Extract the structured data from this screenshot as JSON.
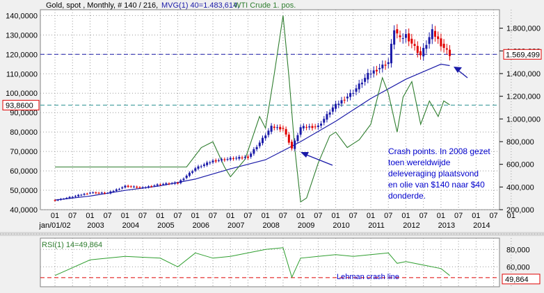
{
  "header": {
    "instrument": "Gold, spot , Monthly, # 140 / 216,",
    "mvg": "MVG(1) 40=1.483,614,",
    "crude": "WTI Crude 1. pos."
  },
  "colors": {
    "gold_up": "#1a1aa8",
    "gold_down": "#e00000",
    "ma": "#1a1aa8",
    "crude": "#2e7d2e",
    "rsi": "#2e9e2e",
    "gridline": "#9a9a9a",
    "hline_price": "#1a1aa8",
    "hline_crude": "#2a9090",
    "hline_rsi": "#e00000",
    "annotation": "#0000cc"
  },
  "annotation": {
    "lines": [
      "Crash points. In 2008 gezet",
      "toen wereldwijde",
      "deleveraging plaatsvond",
      "en olie van $140 naar $40",
      "donderde."
    ]
  },
  "rsi_panel": {
    "label": "RSI(1) 14=49,864",
    "crash_line_label": "Lehman crash line",
    "value_box": "49,864"
  },
  "chart_data": [
    {
      "type": "candlestick",
      "title": "Gold, spot , Monthly, # 140 / 216, MVG(1) 40=1.483,614, WTI Crude 1. pos.",
      "x_ticks_month": [
        "01",
        "07",
        "01",
        "07",
        "01",
        "07",
        "01",
        "07",
        "01",
        "07",
        "01",
        "07",
        "01",
        "07",
        "01",
        "07",
        "01",
        "07",
        "01",
        "07",
        "01",
        "07",
        "01",
        "07",
        "01",
        "07",
        "01"
      ],
      "x_ticks_year": [
        "jan/01/02",
        "2003",
        "2004",
        "2005",
        "2006",
        "2007",
        "2008",
        "2009",
        "2010",
        "2011",
        "2012",
        "2013",
        "2014"
      ],
      "xlim": [
        2001.583,
        2014.667
      ],
      "left_axis": {
        "series": "WTI Crude 1. pos.",
        "ticks": [
          "140,0000",
          "130,0000",
          "120,0000",
          "110,0000",
          "100,0000",
          "90,0000",
          "80,0000",
          "70,0000",
          "60,0000",
          "50,0000",
          "40,0000"
        ],
        "ylim": [
          40,
          143
        ]
      },
      "right_axis": {
        "series": "Gold, spot",
        "ticks": [
          "1.800,000",
          "1.600,000",
          "1.400,000",
          "1.200,000",
          "1.000,000",
          "800,000",
          "600,000",
          "400,000",
          "200,000"
        ],
        "ylim": [
          200,
          1963
        ]
      },
      "price_box": "1.569,499",
      "crude_box": "93,8600",
      "series": [
        {
          "name": "Gold, spot",
          "axis": "right",
          "points": [
            [
              2002.0,
              282
            ],
            [
              2002.5,
              315
            ],
            [
              2003.0,
              350
            ],
            [
              2003.5,
              346
            ],
            [
              2004.0,
              408
            ],
            [
              2004.5,
              393
            ],
            [
              2005.0,
              425
            ],
            [
              2005.5,
              436
            ],
            [
              2006.0,
              565
            ],
            [
              2006.5,
              630
            ],
            [
              2007.0,
              650
            ],
            [
              2007.5,
              665
            ],
            [
              2007.83,
              790
            ],
            [
              2008.17,
              930
            ],
            [
              2008.5,
              915
            ],
            [
              2008.75,
              740
            ],
            [
              2009.0,
              925
            ],
            [
              2009.5,
              935
            ],
            [
              2009.92,
              1100
            ],
            [
              2010.5,
              1240
            ],
            [
              2010.92,
              1390
            ],
            [
              2011.5,
              1500
            ],
            [
              2011.67,
              1800
            ],
            [
              2011.83,
              1700
            ],
            [
              2012.0,
              1740
            ],
            [
              2012.42,
              1560
            ],
            [
              2012.75,
              1770
            ],
            [
              2013.0,
              1660
            ],
            [
              2013.25,
              1570
            ]
          ]
        },
        {
          "name": "MVG(1) 40",
          "axis": "right",
          "points": [
            [
              2002.0,
              285
            ],
            [
              2003.0,
              320
            ],
            [
              2004.0,
              370
            ],
            [
              2005.0,
              410
            ],
            [
              2006.0,
              470
            ],
            [
              2007.0,
              560
            ],
            [
              2008.0,
              640
            ],
            [
              2008.5,
              720
            ],
            [
              2009.0,
              800
            ],
            [
              2010.0,
              980
            ],
            [
              2011.0,
              1180
            ],
            [
              2012.0,
              1350
            ],
            [
              2012.75,
              1450
            ],
            [
              2013.0,
              1483
            ],
            [
              2013.25,
              1470
            ]
          ]
        },
        {
          "name": "WTI Crude 1. pos.",
          "axis": "left",
          "points": [
            [
              2002.0,
              62
            ],
            [
              2005.75,
              62
            ],
            [
              2006.17,
              72
            ],
            [
              2006.5,
              75
            ],
            [
              2006.83,
              62
            ],
            [
              2007.0,
              57
            ],
            [
              2007.42,
              66
            ],
            [
              2007.83,
              88
            ],
            [
              2008.0,
              82
            ],
            [
              2008.25,
              110
            ],
            [
              2008.5,
              140
            ],
            [
              2008.67,
              108
            ],
            [
              2008.83,
              72
            ],
            [
              2009.0,
              44
            ],
            [
              2009.17,
              46
            ],
            [
              2009.5,
              64
            ],
            [
              2009.83,
              78
            ],
            [
              2010.0,
              80
            ],
            [
              2010.33,
              72
            ],
            [
              2010.67,
              76
            ],
            [
              2011.0,
              84
            ],
            [
              2011.33,
              108
            ],
            [
              2011.5,
              100
            ],
            [
              2011.75,
              80
            ],
            [
              2011.92,
              98
            ],
            [
              2012.17,
              106
            ],
            [
              2012.42,
              84
            ],
            [
              2012.67,
              96
            ],
            [
              2012.92,
              88
            ],
            [
              2013.08,
              96
            ],
            [
              2013.25,
              94
            ]
          ]
        }
      ],
      "hlines": [
        {
          "axis": "right",
          "value": 1569.5,
          "style": "dashed-blue"
        },
        {
          "axis": "left",
          "value": 93.86,
          "style": "dashed-teal"
        }
      ]
    },
    {
      "type": "line",
      "title": "RSI(1) 14=49,864",
      "ticks": [
        "80,000",
        "60,000"
      ],
      "ylim": [
        37,
        93
      ],
      "series": [
        {
          "name": "RSI(1) 14",
          "points": [
            [
              2002.0,
              50
            ],
            [
              2003.0,
              68
            ],
            [
              2004.0,
              72
            ],
            [
              2005.0,
              70
            ],
            [
              2005.5,
              60
            ],
            [
              2006.0,
              76
            ],
            [
              2006.5,
              70
            ],
            [
              2007.0,
              72
            ],
            [
              2007.5,
              76
            ],
            [
              2008.0,
              80
            ],
            [
              2008.5,
              82
            ],
            [
              2008.75,
              48
            ],
            [
              2009.0,
              70
            ],
            [
              2009.5,
              72
            ],
            [
              2010.0,
              74
            ],
            [
              2010.5,
              72
            ],
            [
              2011.0,
              74
            ],
            [
              2011.5,
              76
            ],
            [
              2011.75,
              64
            ],
            [
              2012.0,
              66
            ],
            [
              2012.5,
              62
            ],
            [
              2013.0,
              58
            ],
            [
              2013.25,
              50
            ]
          ]
        }
      ],
      "hlines": [
        {
          "value": 47.5,
          "label": "Lehman crash line"
        }
      ]
    }
  ]
}
